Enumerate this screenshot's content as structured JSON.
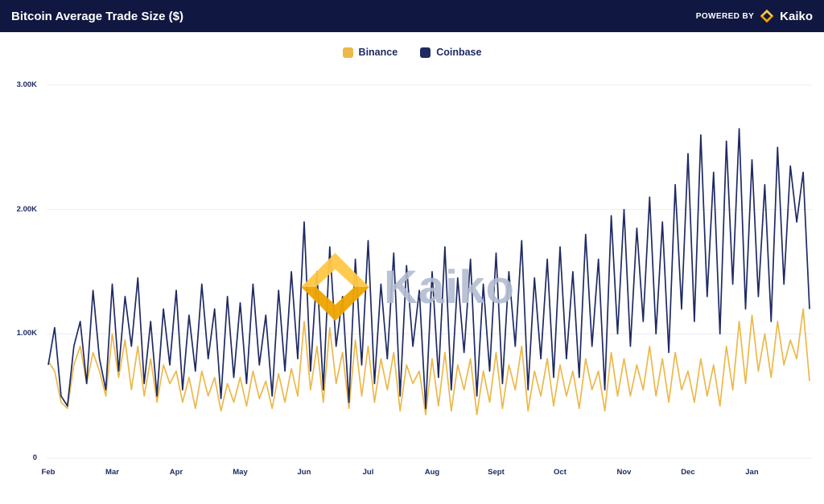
{
  "header": {
    "title": "Bitcoin Average Trade Size ($)",
    "powered_by": "POWERED BY",
    "brand": "Kaiko"
  },
  "legend": [
    {
      "label": "Binance",
      "color": "#ecb84a"
    },
    {
      "label": "Coinbase",
      "color": "#1f2a63"
    }
  ],
  "watermark": {
    "text": "Kaiko"
  },
  "colors": {
    "header_bg": "#101741",
    "gold": "#f5b335",
    "navy": "#1f2a63",
    "grid": "#ececf2"
  },
  "chart_data": {
    "type": "line",
    "title": "Bitcoin Average Trade Size ($)",
    "xlabel": "",
    "ylabel": "",
    "ylim": [
      0,
      3100
    ],
    "grid": "horizontal",
    "legend_position": "top-center",
    "x_tick_labels": [
      "Feb",
      "Mar",
      "Apr",
      "May",
      "Jun",
      "Jul",
      "Aug",
      "Sept",
      "Oct",
      "Nov",
      "Dec",
      "Jan"
    ],
    "y_ticks": [
      {
        "label": "3.00K",
        "value": 3000
      },
      {
        "label": "2.00K",
        "value": 2000
      },
      {
        "label": "1.00K",
        "value": 1000
      },
      {
        "label": "0",
        "value": 0
      }
    ],
    "points_per_month": 10,
    "series": [
      {
        "name": "Binance",
        "color": "#ecb84a",
        "values": [
          780,
          700,
          450,
          400,
          750,
          900,
          600,
          850,
          700,
          500,
          1000,
          650,
          950,
          550,
          900,
          500,
          800,
          450,
          750,
          600,
          700,
          450,
          650,
          400,
          700,
          500,
          650,
          380,
          600,
          450,
          650,
          420,
          700,
          480,
          620,
          400,
          680,
          450,
          720,
          500,
          1100,
          550,
          900,
          450,
          1050,
          600,
          850,
          400,
          950,
          500,
          900,
          450,
          800,
          550,
          850,
          380,
          750,
          600,
          700,
          350,
          800,
          420,
          850,
          380,
          750,
          550,
          800,
          350,
          700,
          450,
          850,
          400,
          750,
          550,
          900,
          380,
          700,
          500,
          800,
          420,
          750,
          500,
          700,
          400,
          800,
          550,
          700,
          380,
          850,
          500,
          800,
          500,
          750,
          550,
          900,
          500,
          800,
          450,
          850,
          550,
          700,
          450,
          800,
          500,
          750,
          420,
          900,
          550,
          1100,
          600,
          1150,
          700,
          1000,
          650,
          1100,
          750,
          950,
          800,
          1200,
          620
        ]
      },
      {
        "name": "Coinbase",
        "color": "#1f2a63",
        "values": [
          750,
          1050,
          500,
          420,
          900,
          1100,
          600,
          1350,
          800,
          550,
          1400,
          700,
          1300,
          900,
          1450,
          600,
          1100,
          500,
          1200,
          750,
          1350,
          550,
          1150,
          700,
          1400,
          800,
          1200,
          480,
          1300,
          650,
          1250,
          600,
          1400,
          750,
          1150,
          500,
          1350,
          700,
          1500,
          800,
          1900,
          700,
          1500,
          550,
          1700,
          900,
          1300,
          450,
          1600,
          750,
          1750,
          600,
          1400,
          800,
          1650,
          500,
          1550,
          900,
          1350,
          400,
          1500,
          650,
          1700,
          550,
          1450,
          850,
          1600,
          500,
          1400,
          700,
          1650,
          600,
          1500,
          900,
          1750,
          550,
          1450,
          800,
          1600,
          650,
          1700,
          800,
          1500,
          650,
          1800,
          900,
          1600,
          550,
          1950,
          1000,
          2000,
          900,
          1850,
          1100,
          2100,
          1000,
          1900,
          850,
          2200,
          1200,
          2450,
          1100,
          2600,
          1300,
          2300,
          1000,
          2550,
          1400,
          2650,
          1200,
          2400,
          1300,
          2200,
          1100,
          2500,
          1400,
          2350,
          1900,
          2300,
          1200
        ]
      }
    ]
  }
}
